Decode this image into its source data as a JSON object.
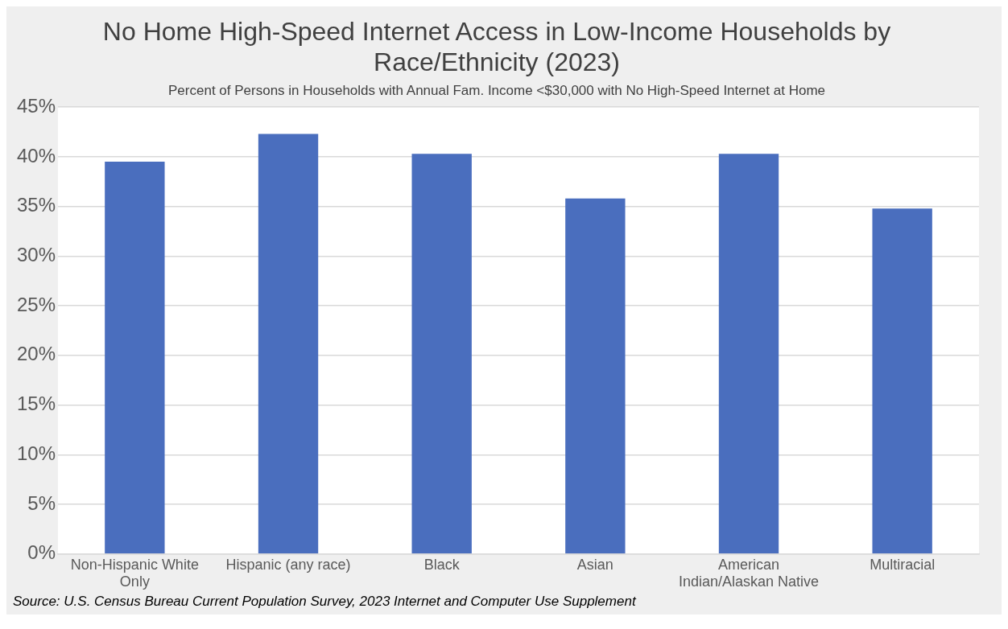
{
  "chart_data": {
    "type": "bar",
    "title": "No Home High-Speed Internet Access in Low-Income Households by Race/Ethnicity (2023)",
    "subtitle": "Percent of Persons in Households with Annual Fam. Income <$30,000 with No High-Speed Internet at Home",
    "categories": [
      "Non-Hispanic White Only",
      "Hispanic (any race)",
      "Black",
      "Asian",
      "American Indian/Alaskan Native",
      "Multiracial"
    ],
    "values": [
      39.5,
      42.3,
      40.3,
      35.8,
      40.3,
      34.8
    ],
    "color": "#4a6ebe",
    "ylim": [
      0,
      45
    ],
    "yticks": [
      {
        "value": 0,
        "label": "0%"
      },
      {
        "value": 5,
        "label": "5%"
      },
      {
        "value": 10,
        "label": "10%"
      },
      {
        "value": 15,
        "label": "15%"
      },
      {
        "value": 20,
        "label": "20%"
      },
      {
        "value": 25,
        "label": "25%"
      },
      {
        "value": 30,
        "label": "30%"
      },
      {
        "value": 35,
        "label": "35%"
      },
      {
        "value": 40,
        "label": "40%"
      },
      {
        "value": 45,
        "label": "45%"
      }
    ],
    "grid": "y",
    "legend": false,
    "annotations": [
      "Source: U.S. Census Bureau Current Population Survey, 2023 Internet and Computer Use Supplement"
    ]
  }
}
